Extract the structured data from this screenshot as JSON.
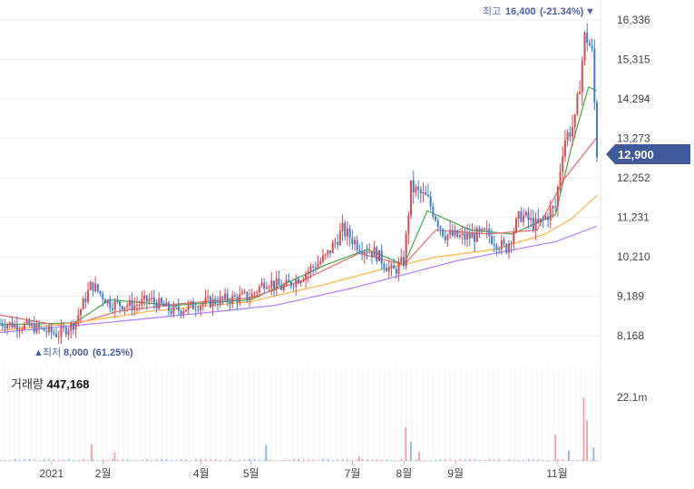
{
  "chart_data": {
    "type": "candlestick",
    "currency_unit": "KRW",
    "y_ticks": [
      "16,336",
      "15,315",
      "14,294",
      "13,273",
      "12,252",
      "11,231",
      "10,210",
      "9,189",
      "8,168"
    ],
    "y_tick_values": [
      16336,
      15315,
      14294,
      13273,
      12252,
      11231,
      10210,
      9189,
      8168
    ],
    "ylim": [
      7900,
      16700
    ],
    "x_ticks": [
      {
        "label": "2021",
        "date": "2021-01"
      },
      {
        "label": "2월",
        "date": "2021-02"
      },
      {
        "label": "4월",
        "date": "2021-04"
      },
      {
        "label": "5월",
        "date": "2021-05"
      },
      {
        "label": "7월",
        "date": "2021-07"
      },
      {
        "label": "8월",
        "date": "2021-08"
      },
      {
        "label": "9월",
        "date": "2021-09"
      },
      {
        "label": "11월",
        "date": "2021-11"
      }
    ],
    "current_price_label": "12,900",
    "current_price": 12900,
    "high_annotation": {
      "label": "최고",
      "value": "16,400",
      "pct": "(-21.34%)",
      "marker": "▼"
    },
    "low_annotation": {
      "label": "최저",
      "value": "8,000",
      "pct": "(61.25%)",
      "marker": "▲"
    },
    "close_trend": [
      [
        "2020-12-01",
        8500
      ],
      [
        "2020-12-20",
        8400
      ],
      [
        "2021-01-05",
        8200
      ],
      [
        "2021-01-15",
        8500
      ],
      [
        "2021-01-25",
        9500
      ],
      [
        "2021-02-05",
        9000
      ],
      [
        "2021-02-20",
        8950
      ],
      [
        "2021-03-01",
        9100
      ],
      [
        "2021-03-15",
        8800
      ],
      [
        "2021-04-01",
        9000
      ],
      [
        "2021-04-15",
        9100
      ],
      [
        "2021-05-01",
        9200
      ],
      [
        "2021-05-10",
        9600
      ],
      [
        "2021-05-20",
        9400
      ],
      [
        "2021-05-31",
        9700
      ],
      [
        "2021-06-15",
        10200
      ],
      [
        "2021-06-25",
        10900
      ],
      [
        "2021-07-05",
        10500
      ],
      [
        "2021-07-15",
        10300
      ],
      [
        "2021-07-25",
        9800
      ],
      [
        "2021-08-01",
        10100
      ],
      [
        "2021-08-05",
        12000
      ],
      [
        "2021-08-15",
        11700
      ],
      [
        "2021-08-25",
        10800
      ],
      [
        "2021-09-05",
        10700
      ],
      [
        "2021-09-20",
        10800
      ],
      [
        "2021-10-01",
        10400
      ],
      [
        "2021-10-10",
        11300
      ],
      [
        "2021-10-20",
        11000
      ],
      [
        "2021-10-31",
        11500
      ],
      [
        "2021-11-05",
        13200
      ],
      [
        "2021-11-12",
        13700
      ],
      [
        "2021-11-18",
        16000
      ],
      [
        "2021-11-22",
        15500
      ],
      [
        "2021-11-25",
        12900
      ]
    ],
    "moving_averages": [
      {
        "color": "#4caf50",
        "points": [
          [
            "2020-12-01",
            8450
          ],
          [
            "2021-01-15",
            8500
          ],
          [
            "2021-02-05",
            9100
          ],
          [
            "2021-03-15",
            8950
          ],
          [
            "2021-05-01",
            9100
          ],
          [
            "2021-06-15",
            10000
          ],
          [
            "2021-07-10",
            10400
          ],
          [
            "2021-08-01",
            10000
          ],
          [
            "2021-08-15",
            11400
          ],
          [
            "2021-09-10",
            10900
          ],
          [
            "2021-10-05",
            10800
          ],
          [
            "2021-10-31",
            11300
          ],
          [
            "2021-11-10",
            13100
          ],
          [
            "2021-11-20",
            14600
          ],
          [
            "2021-11-25",
            14500
          ]
        ]
      },
      {
        "color": "#e57373",
        "points": [
          [
            "2020-12-01",
            8700
          ],
          [
            "2021-01-10",
            8400
          ],
          [
            "2021-02-10",
            8800
          ],
          [
            "2021-03-20",
            9000
          ],
          [
            "2021-05-01",
            9150
          ],
          [
            "2021-06-01",
            9600
          ],
          [
            "2021-07-05",
            10300
          ],
          [
            "2021-08-01",
            10000
          ],
          [
            "2021-08-20",
            10900
          ],
          [
            "2021-09-20",
            10800
          ],
          [
            "2021-10-20",
            10900
          ],
          [
            "2021-11-05",
            12200
          ],
          [
            "2021-11-25",
            13300
          ]
        ]
      },
      {
        "color": "#ffb74d",
        "points": [
          [
            "2020-12-01",
            8300
          ],
          [
            "2021-01-15",
            8500
          ],
          [
            "2021-03-01",
            8800
          ],
          [
            "2021-05-01",
            9050
          ],
          [
            "2021-06-15",
            9500
          ],
          [
            "2021-07-20",
            9900
          ],
          [
            "2021-08-20",
            10200
          ],
          [
            "2021-09-25",
            10400
          ],
          [
            "2021-10-25",
            10800
          ],
          [
            "2021-11-10",
            11200
          ],
          [
            "2021-11-25",
            11800
          ]
        ]
      },
      {
        "color": "#b388ff",
        "points": [
          [
            "2020-12-01",
            8250
          ],
          [
            "2021-02-01",
            8500
          ],
          [
            "2021-04-01",
            8750
          ],
          [
            "2021-05-15",
            8950
          ],
          [
            "2021-07-01",
            9400
          ],
          [
            "2021-08-01",
            9750
          ],
          [
            "2021-09-01",
            10100
          ],
          [
            "2021-10-01",
            10350
          ],
          [
            "2021-10-31",
            10600
          ],
          [
            "2021-11-25",
            11000
          ]
        ]
      }
    ],
    "volume": {
      "label": "거래량",
      "last_value": "447,168",
      "max_tick": "22.1m",
      "max_tick_value": 22100000,
      "spikes": [
        [
          "2021-01-25",
          5500000
        ],
        [
          "2021-02-08",
          2800000
        ],
        [
          "2021-05-10",
          5200000
        ],
        [
          "2021-07-05",
          1500000
        ],
        [
          "2021-08-02",
          11200000
        ],
        [
          "2021-08-05",
          6500000
        ],
        [
          "2021-08-10",
          3000000
        ],
        [
          "2021-10-31",
          8900000
        ],
        [
          "2021-11-08",
          3400000
        ],
        [
          "2021-11-17",
          21200000
        ],
        [
          "2021-11-19",
          13500000
        ],
        [
          "2021-11-23",
          4500000
        ]
      ]
    }
  }
}
